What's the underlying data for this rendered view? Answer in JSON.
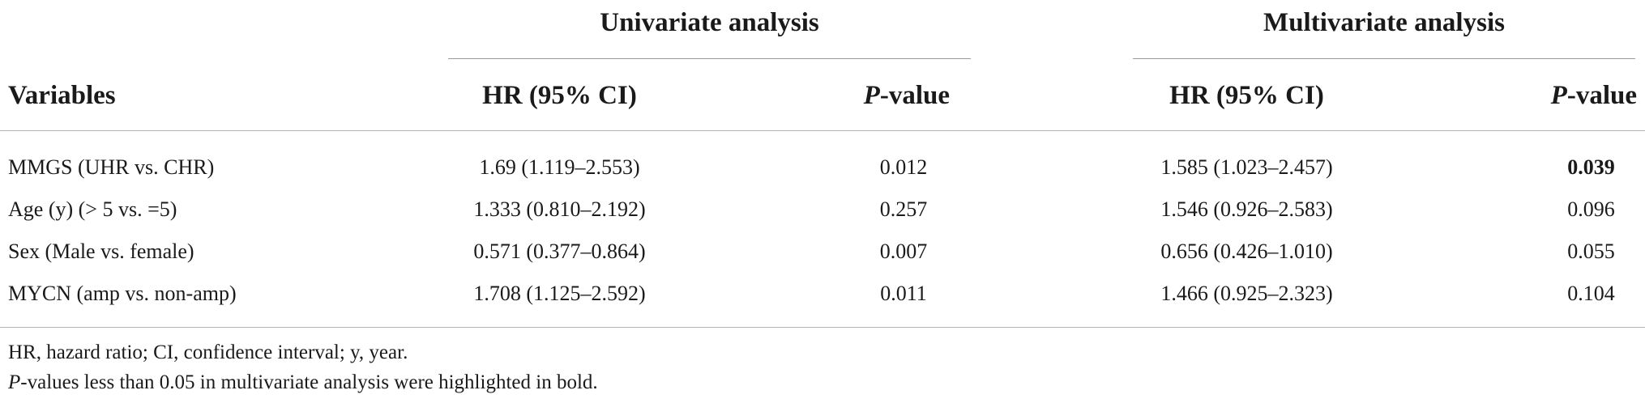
{
  "groups": {
    "univariate": "Univariate analysis",
    "multivariate": "Multivariate analysis"
  },
  "headers": {
    "variables": "Variables",
    "hr_ci": "HR (95% CI)",
    "p_italic": "P",
    "p_rest": "-value"
  },
  "rows": [
    {
      "variable": "MMGS (UHR vs. CHR)",
      "uni_hr": "1.69 (1.119–2.553)",
      "uni_p": "0.012",
      "multi_hr": "1.585 (1.023–2.457)",
      "multi_p": "0.039"
    },
    {
      "variable": "Age (y) (> 5 vs. =5)",
      "uni_hr": "1.333 (0.810–2.192)",
      "uni_p": "0.257",
      "multi_hr": "1.546 (0.926–2.583)",
      "multi_p": "0.096"
    },
    {
      "variable": "Sex (Male vs. female)",
      "uni_hr": "0.571 (0.377–0.864)",
      "uni_p": "0.007",
      "multi_hr": "0.656 (0.426–1.010)",
      "multi_p": "0.055"
    },
    {
      "variable": "MYCN (amp vs. non-amp)",
      "uni_hr": "1.708 (1.125–2.592)",
      "uni_p": "0.011",
      "multi_hr": "1.466 (0.925–2.323)",
      "multi_p": "0.104"
    }
  ],
  "footnotes": {
    "abbreviations": "HR, hazard ratio; CI, confidence interval; y, year.",
    "bold_note_italic": "P",
    "bold_note_rest": "-values less than 0.05 in multivariate analysis were highlighted in bold."
  }
}
